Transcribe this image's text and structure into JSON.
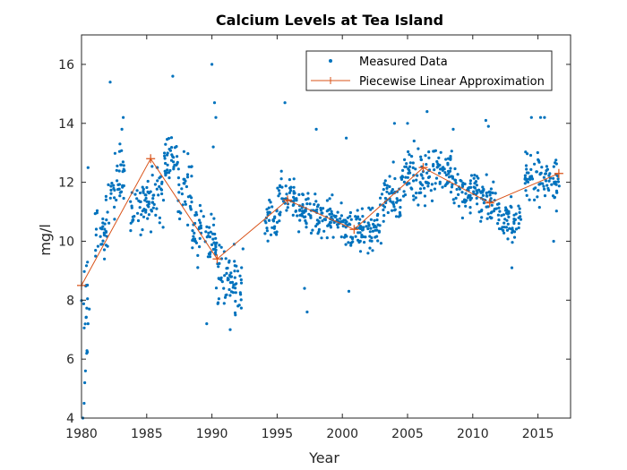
{
  "chart_data": {
    "type": "scatter",
    "title": "Calcium Levels at Tea Island",
    "xlabel": "Year",
    "ylabel": "mg/l",
    "xlim": [
      1980,
      2017.5
    ],
    "ylim": [
      4,
      17
    ],
    "xticks": [
      1980,
      1985,
      1990,
      1995,
      2000,
      2005,
      2010,
      2015
    ],
    "yticks": [
      4,
      6,
      8,
      10,
      12,
      14,
      16
    ],
    "grid": false,
    "legend_position": "top-right",
    "colors": {
      "measured": "#0072BD",
      "approx": "#D95319",
      "axis": "#262626"
    },
    "series": [
      {
        "name": "Measured Data",
        "style": "points",
        "clusters": [
          [
            1980.0,
            1980.5,
            8.2,
            4.0
          ],
          [
            1981.0,
            1982.0,
            10.3,
            1.4
          ],
          [
            1982.0,
            1983.3,
            12.0,
            1.6
          ],
          [
            1983.7,
            1985.4,
            11.2,
            1.2
          ],
          [
            1985.4,
            1986.3,
            11.6,
            1.4
          ],
          [
            1986.3,
            1987.4,
            12.8,
            0.9
          ],
          [
            1987.4,
            1988.5,
            11.8,
            1.5
          ],
          [
            1988.5,
            1989.4,
            10.2,
            1.4
          ],
          [
            1989.4,
            1990.3,
            10.0,
            1.2
          ],
          [
            1990.3,
            1991.6,
            8.8,
            1.4
          ],
          [
            1991.6,
            1992.4,
            8.6,
            1.5
          ],
          [
            1994.0,
            1995.0,
            10.7,
            1.1
          ],
          [
            1995.0,
            1996.5,
            11.4,
            1.2
          ],
          [
            1996.5,
            1998.0,
            11.0,
            1.0
          ],
          [
            1998.0,
            2000.0,
            10.8,
            1.0
          ],
          [
            2000.0,
            2001.5,
            10.3,
            1.1
          ],
          [
            2001.5,
            2003.0,
            10.5,
            1.2
          ],
          [
            2003.0,
            2004.5,
            11.5,
            1.3
          ],
          [
            2004.5,
            2006.5,
            12.2,
            1.2
          ],
          [
            2006.5,
            2008.5,
            12.4,
            1.2
          ],
          [
            2008.5,
            2010.5,
            11.7,
            1.1
          ],
          [
            2010.5,
            2012.0,
            11.3,
            1.1
          ],
          [
            2012.0,
            2013.7,
            10.7,
            1.0
          ],
          [
            2014.0,
            2016.0,
            12.1,
            1.3
          ],
          [
            2016.0,
            2016.7,
            12.0,
            1.4
          ]
        ],
        "outliers": [
          [
            1980.1,
            4.0
          ],
          [
            1980.2,
            4.5
          ],
          [
            1980.25,
            5.2
          ],
          [
            1980.3,
            5.6
          ],
          [
            1980.4,
            6.2
          ],
          [
            1980.5,
            7.2
          ],
          [
            1980.6,
            7.7
          ],
          [
            1980.5,
            12.5
          ],
          [
            1982.2,
            15.4
          ],
          [
            1983.2,
            14.2
          ],
          [
            1983.1,
            13.8
          ],
          [
            1987.0,
            15.6
          ],
          [
            1990.0,
            16.0
          ],
          [
            1990.2,
            14.7
          ],
          [
            1990.3,
            14.2
          ],
          [
            1990.1,
            13.2
          ],
          [
            1989.6,
            7.2
          ],
          [
            1991.4,
            7.0
          ],
          [
            1991.8,
            7.5
          ],
          [
            1992.0,
            7.8
          ],
          [
            1995.6,
            14.7
          ],
          [
            1997.1,
            8.4
          ],
          [
            1997.3,
            7.6
          ],
          [
            1998.0,
            13.8
          ],
          [
            2000.3,
            13.5
          ],
          [
            2000.5,
            8.3
          ],
          [
            2004.0,
            14.0
          ],
          [
            2005.0,
            14.0
          ],
          [
            2005.5,
            13.4
          ],
          [
            2006.5,
            14.4
          ],
          [
            2008.5,
            13.8
          ],
          [
            2011.0,
            14.1
          ],
          [
            2011.2,
            13.9
          ],
          [
            2013.0,
            9.1
          ],
          [
            2014.5,
            14.2
          ],
          [
            2015.2,
            14.2
          ],
          [
            2015.5,
            14.2
          ],
          [
            2016.2,
            10.0
          ]
        ],
        "point_count": 1100,
        "seed": 7
      },
      {
        "name": "Piecewise Linear Approximation",
        "style": "line-plus-markers",
        "x": [
          1980.0,
          1985.3,
          1990.4,
          1995.8,
          2000.9,
          2006.2,
          2011.3,
          2016.6
        ],
        "y": [
          8.5,
          12.8,
          9.4,
          11.4,
          10.4,
          12.5,
          11.3,
          12.3
        ]
      }
    ]
  }
}
